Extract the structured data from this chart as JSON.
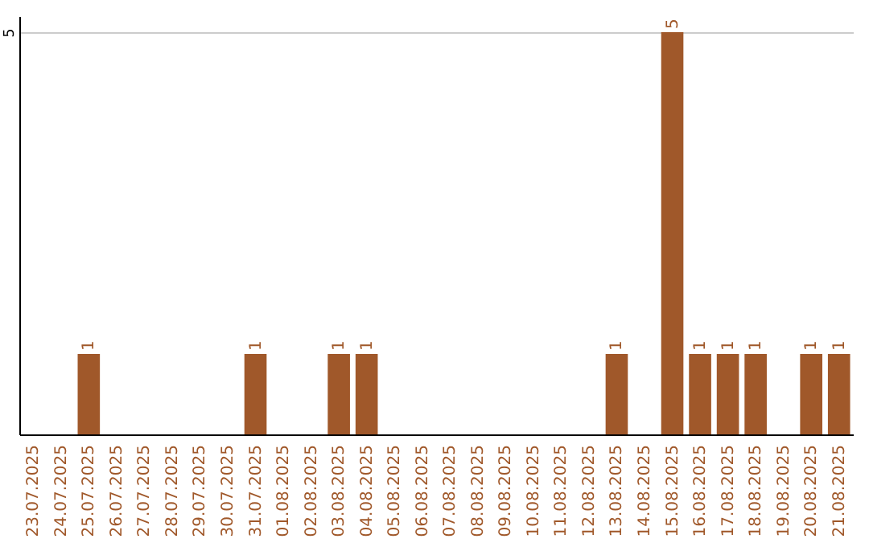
{
  "chart_data": {
    "type": "bar",
    "categories": [
      "23.07.2025",
      "24.07.2025",
      "25.07.2025",
      "26.07.2025",
      "27.07.2025",
      "28.07.2025",
      "29.07.2025",
      "30.07.2025",
      "31.07.2025",
      "01.08.2025",
      "02.08.2025",
      "03.08.2025",
      "04.08.2025",
      "05.08.2025",
      "06.08.2025",
      "07.08.2025",
      "08.08.2025",
      "09.08.2025",
      "10.08.2025",
      "11.08.2025",
      "12.08.2025",
      "13.08.2025",
      "14.08.2025",
      "15.08.2025",
      "16.08.2025",
      "17.08.2025",
      "18.08.2025",
      "19.08.2025",
      "20.08.2025",
      "21.08.2025"
    ],
    "values": [
      0,
      0,
      1,
      0,
      0,
      0,
      0,
      0,
      1,
      0,
      0,
      1,
      1,
      0,
      0,
      0,
      0,
      0,
      0,
      0,
      0,
      1,
      0,
      5,
      1,
      1,
      1,
      0,
      1,
      1
    ],
    "value_labels": [
      null,
      null,
      "1",
      null,
      null,
      null,
      null,
      null,
      "1",
      null,
      null,
      "1",
      "1",
      null,
      null,
      null,
      null,
      null,
      null,
      null,
      null,
      "1",
      null,
      "5",
      "1",
      "1",
      "1",
      null,
      "1",
      "1"
    ],
    "color": "#a0582a",
    "ylim": [
      0,
      5.2
    ],
    "yticks": [
      5
    ],
    "grid": "y"
  }
}
